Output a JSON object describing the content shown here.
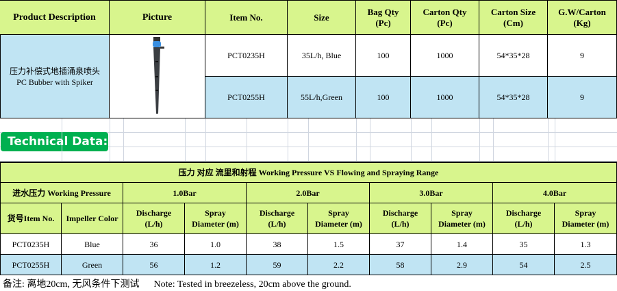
{
  "product_table": {
    "headers": [
      "Product Description",
      "Picture",
      "Item No.",
      "Size",
      "Bag Qty\n(Pc)",
      "Carton Qty\n(Pc)",
      "Carton Size\n(Cm)",
      "G.W/Carton\n(Kg)"
    ],
    "description_cn": "压力补偿式地插涌泉喷头",
    "description_en": "PC Bubber with Spiker",
    "rows": [
      [
        "PCT0235H",
        "35L/h, Blue",
        "100",
        "1000",
        "54*35*28",
        "9"
      ],
      [
        "PCT0255H",
        "55L/h,Green",
        "100",
        "1000",
        "54*35*28",
        "9"
      ]
    ]
  },
  "technical_label": "Technical Data:",
  "tech_table": {
    "title": "压力  对应  流里和射程  Working Pressure VS Flowing  and Spraying Range",
    "pressure_label": "进水压力  Working Pressure",
    "pressures": [
      "1.0Bar",
      "2.0Bar",
      "3.0Bar",
      "4.0Bar"
    ],
    "col_item": "货号Item No.",
    "col_color": "Impeller Color",
    "col_discharge": "Discharge\n(L/h)",
    "col_spray": "Spray\nDiameter (m)",
    "rows": [
      {
        "item": "PCT0235H",
        "color": "Blue",
        "values": [
          "36",
          "1.0",
          "38",
          "1.5",
          "37",
          "1.4",
          "35",
          "1.3"
        ]
      },
      {
        "item": "PCT0255H",
        "color": "Green",
        "values": [
          "56",
          "1.2",
          "59",
          "2.2",
          "58",
          "2.9",
          "54",
          "2.5"
        ]
      }
    ]
  },
  "note": "备注: 离地20cm, 无风条件下测试      Note: Tested in breezeless, 20cm above the ground.",
  "colors": {
    "header": "#d8f58d",
    "highlight": "#c0e4f3",
    "badge": "#00b050"
  }
}
